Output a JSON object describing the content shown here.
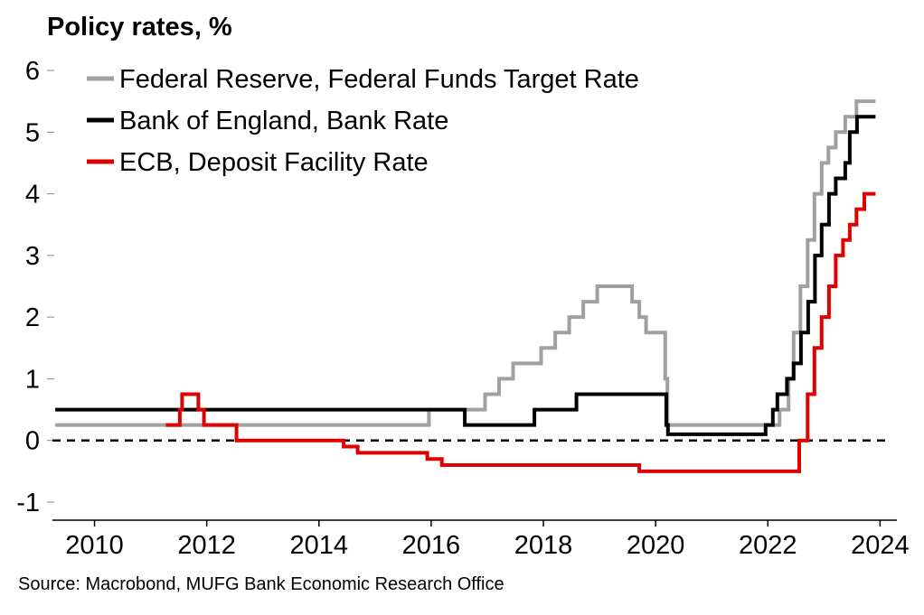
{
  "chart_data": {
    "type": "line",
    "title": "Policy rates, %",
    "source": "Source: Macrobond, MUFG Bank Economic Research Office",
    "xlabel": "",
    "ylabel": "",
    "xlim": [
      2009.25,
      2024.3
    ],
    "ylim": [
      -1,
      6
    ],
    "x_ticks": [
      2010,
      2012,
      2014,
      2016,
      2018,
      2020,
      2022,
      2024
    ],
    "x_tick_labels": [
      "2010",
      "2012",
      "2014",
      "2016",
      "2018",
      "2020",
      "2022",
      "2024"
    ],
    "y_ticks": [
      -1,
      0,
      1,
      2,
      3,
      4,
      5,
      6
    ],
    "y_tick_labels": [
      "-1",
      "0",
      "1",
      "2",
      "3",
      "4",
      "5",
      "6"
    ],
    "zero_line": "dashed",
    "grid": false,
    "legend_position": "top-left",
    "series": [
      {
        "name": "Federal Reserve, Federal Funds Target Rate",
        "color": "#a0a0a0",
        "step": [
          [
            2009.3,
            0.25
          ],
          [
            2015.96,
            0.5
          ],
          [
            2016.96,
            0.75
          ],
          [
            2017.21,
            1.0
          ],
          [
            2017.46,
            1.25
          ],
          [
            2017.96,
            1.5
          ],
          [
            2018.21,
            1.75
          ],
          [
            2018.46,
            2.0
          ],
          [
            2018.71,
            2.25
          ],
          [
            2018.96,
            2.5
          ],
          [
            2019.58,
            2.25
          ],
          [
            2019.71,
            2.0
          ],
          [
            2019.83,
            1.75
          ],
          [
            2020.17,
            1.0
          ],
          [
            2020.21,
            0.25
          ],
          [
            2022.21,
            0.5
          ],
          [
            2022.37,
            1.0
          ],
          [
            2022.46,
            1.75
          ],
          [
            2022.58,
            2.5
          ],
          [
            2022.71,
            3.25
          ],
          [
            2022.83,
            4.0
          ],
          [
            2022.96,
            4.5
          ],
          [
            2023.08,
            4.75
          ],
          [
            2023.21,
            5.0
          ],
          [
            2023.38,
            5.25
          ],
          [
            2023.58,
            5.5
          ],
          [
            2023.92,
            5.5
          ]
        ]
      },
      {
        "name": "Bank of England, Bank Rate",
        "color": "#000000",
        "step": [
          [
            2009.3,
            0.5
          ],
          [
            2016.6,
            0.25
          ],
          [
            2017.84,
            0.5
          ],
          [
            2018.59,
            0.75
          ],
          [
            2020.19,
            0.25
          ],
          [
            2020.22,
            0.1
          ],
          [
            2021.96,
            0.25
          ],
          [
            2022.09,
            0.5
          ],
          [
            2022.17,
            0.75
          ],
          [
            2022.34,
            1.0
          ],
          [
            2022.46,
            1.25
          ],
          [
            2022.59,
            1.75
          ],
          [
            2022.72,
            2.25
          ],
          [
            2022.84,
            3.0
          ],
          [
            2022.96,
            3.5
          ],
          [
            2023.09,
            4.0
          ],
          [
            2023.21,
            4.25
          ],
          [
            2023.38,
            4.5
          ],
          [
            2023.46,
            5.0
          ],
          [
            2023.59,
            5.25
          ],
          [
            2023.92,
            5.25
          ]
        ]
      },
      {
        "name": "ECB, Deposit Facility Rate",
        "color": "#e00000",
        "step": [
          [
            2011.27,
            0.25
          ],
          [
            2011.52,
            0.5
          ],
          [
            2011.56,
            0.75
          ],
          [
            2011.85,
            0.5
          ],
          [
            2011.95,
            0.25
          ],
          [
            2012.53,
            0.0
          ],
          [
            2014.44,
            -0.1
          ],
          [
            2014.69,
            -0.2
          ],
          [
            2015.93,
            -0.3
          ],
          [
            2016.19,
            -0.4
          ],
          [
            2019.71,
            -0.5
          ],
          [
            2022.56,
            0.0
          ],
          [
            2022.71,
            0.75
          ],
          [
            2022.83,
            1.5
          ],
          [
            2022.96,
            2.0
          ],
          [
            2023.09,
            2.5
          ],
          [
            2023.21,
            3.0
          ],
          [
            2023.34,
            3.25
          ],
          [
            2023.46,
            3.5
          ],
          [
            2023.58,
            3.75
          ],
          [
            2023.72,
            4.0
          ],
          [
            2023.92,
            4.0
          ]
        ]
      }
    ]
  }
}
